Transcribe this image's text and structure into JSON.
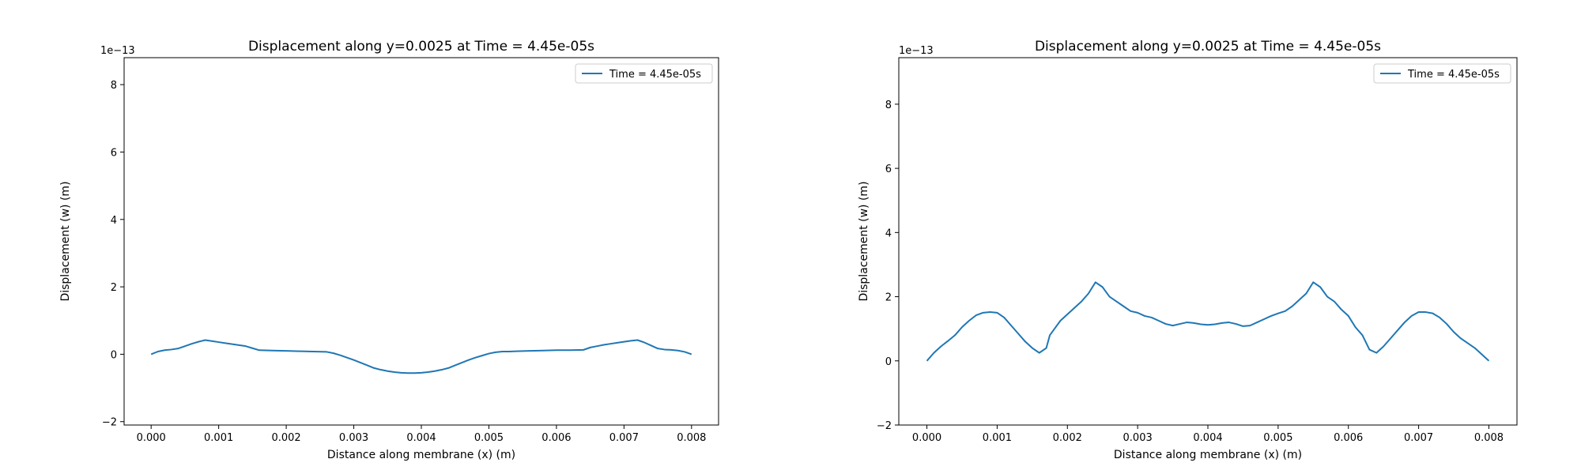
{
  "chart_data": [
    {
      "type": "line",
      "title": "Displacement along y=0.0025 at Time = 4.45e-05s",
      "xlabel": "Distance along membrane (x) (m)",
      "ylabel": "Displacement (w) (m)",
      "y_offset_label": "1e−13",
      "xlim": [
        -0.0004,
        0.0084
      ],
      "ylim": [
        -2.1,
        8.8
      ],
      "xticks": [
        0.0,
        0.001,
        0.002,
        0.003,
        0.004,
        0.005,
        0.006,
        0.007,
        0.008
      ],
      "xtick_labels": [
        "0.000",
        "0.001",
        "0.002",
        "0.003",
        "0.004",
        "0.005",
        "0.006",
        "0.007",
        "0.008"
      ],
      "yticks": [
        -2,
        0,
        2,
        4,
        6,
        8
      ],
      "ytick_labels": [
        "−2",
        "0",
        "2",
        "4",
        "6",
        "8"
      ],
      "legend": "top-right",
      "color": "#1f77b4",
      "series": [
        {
          "name": "Time = 4.45e-05s",
          "x": [
            0.0,
            0.0001,
            0.0002,
            0.0003,
            0.0004,
            0.0005,
            0.0006,
            0.0007,
            0.0008,
            0.0009,
            0.001,
            0.0011,
            0.0012,
            0.0013,
            0.0014,
            0.0015,
            0.0016,
            0.0018,
            0.002,
            0.0022,
            0.0024,
            0.0026,
            0.0027,
            0.0028,
            0.0029,
            0.003,
            0.0031,
            0.0032,
            0.0033,
            0.0034,
            0.0035,
            0.0036,
            0.0037,
            0.0038,
            0.0039,
            0.004,
            0.0041,
            0.0042,
            0.0043,
            0.0044,
            0.0045,
            0.0046,
            0.0047,
            0.0048,
            0.0049,
            0.005,
            0.0051,
            0.0052,
            0.0053,
            0.0054,
            0.0056,
            0.0058,
            0.006,
            0.0062,
            0.0064,
            0.0065,
            0.0066,
            0.0067,
            0.0068,
            0.0069,
            0.007,
            0.0071,
            0.0072,
            0.0073,
            0.0074,
            0.0075,
            0.0076,
            0.0077,
            0.0078,
            0.0079,
            0.008
          ],
          "y": [
            0.0,
            0.08,
            0.12,
            0.14,
            0.17,
            0.24,
            0.31,
            0.37,
            0.42,
            0.39,
            0.36,
            0.33,
            0.3,
            0.27,
            0.24,
            0.18,
            0.12,
            0.11,
            0.1,
            0.09,
            0.08,
            0.07,
            0.03,
            -0.03,
            -0.1,
            -0.17,
            -0.25,
            -0.33,
            -0.41,
            -0.46,
            -0.5,
            -0.53,
            -0.55,
            -0.56,
            -0.56,
            -0.55,
            -0.53,
            -0.5,
            -0.46,
            -0.41,
            -0.33,
            -0.25,
            -0.17,
            -0.1,
            -0.04,
            0.02,
            0.06,
            0.08,
            0.08,
            0.09,
            0.1,
            0.11,
            0.12,
            0.12,
            0.13,
            0.2,
            0.24,
            0.28,
            0.31,
            0.34,
            0.37,
            0.4,
            0.42,
            0.35,
            0.26,
            0.17,
            0.14,
            0.13,
            0.11,
            0.07,
            0.0
          ]
        }
      ]
    },
    {
      "type": "line",
      "title": "Displacement along y=0.0025 at Time = 4.45e-05s",
      "xlabel": "Distance along membrane (x) (m)",
      "ylabel": "Displacement (w) (m)",
      "y_offset_label": "1e−13",
      "xlim": [
        -0.0004,
        0.0084
      ],
      "ylim": [
        -2.0,
        9.45
      ],
      "xticks": [
        0.0,
        0.001,
        0.002,
        0.003,
        0.004,
        0.005,
        0.006,
        0.007,
        0.008
      ],
      "xtick_labels": [
        "0.000",
        "0.001",
        "0.002",
        "0.003",
        "0.004",
        "0.005",
        "0.006",
        "0.007",
        "0.008"
      ],
      "yticks": [
        -2,
        0,
        2,
        4,
        6,
        8
      ],
      "ytick_labels": [
        "−2",
        "0",
        "2",
        "4",
        "6",
        "8"
      ],
      "legend": "top-right",
      "color": "#1f77b4",
      "series": [
        {
          "name": "Time = 4.45e-05s",
          "x": [
            0.0,
            0.0001,
            0.0002,
            0.0003,
            0.0004,
            0.0005,
            0.0006,
            0.0007,
            0.0008,
            0.0009,
            0.001,
            0.0011,
            0.0012,
            0.0013,
            0.0014,
            0.0015,
            0.0016,
            0.0017,
            0.00175,
            0.0018,
            0.0019,
            0.002,
            0.0021,
            0.0022,
            0.0023,
            0.0024,
            0.0025,
            0.0026,
            0.0027,
            0.0028,
            0.0029,
            0.003,
            0.0031,
            0.0032,
            0.0033,
            0.0034,
            0.0035,
            0.0036,
            0.0037,
            0.0038,
            0.0039,
            0.004,
            0.0041,
            0.0042,
            0.0043,
            0.0044,
            0.0045,
            0.0046,
            0.0047,
            0.0048,
            0.0049,
            0.005,
            0.0051,
            0.0052,
            0.0053,
            0.0054,
            0.0055,
            0.0056,
            0.0057,
            0.0058,
            0.0059,
            0.006,
            0.0061,
            0.0062,
            0.0063,
            0.0064,
            0.0065,
            0.0066,
            0.0067,
            0.0068,
            0.0069,
            0.007,
            0.0071,
            0.0072,
            0.0073,
            0.0074,
            0.0075,
            0.0076,
            0.0077,
            0.0078,
            0.0079,
            0.008
          ],
          "y": [
            0.0,
            0.25,
            0.45,
            0.62,
            0.8,
            1.05,
            1.25,
            1.42,
            1.5,
            1.52,
            1.5,
            1.35,
            1.1,
            0.85,
            0.6,
            0.4,
            0.25,
            0.4,
            0.8,
            0.95,
            1.25,
            1.45,
            1.65,
            1.85,
            2.1,
            2.45,
            2.3,
            2.0,
            1.85,
            1.7,
            1.55,
            1.5,
            1.4,
            1.35,
            1.25,
            1.15,
            1.1,
            1.15,
            1.2,
            1.18,
            1.14,
            1.12,
            1.14,
            1.18,
            1.2,
            1.15,
            1.08,
            1.1,
            1.2,
            1.3,
            1.4,
            1.48,
            1.55,
            1.7,
            1.9,
            2.1,
            2.45,
            2.3,
            2.0,
            1.85,
            1.6,
            1.4,
            1.05,
            0.8,
            0.35,
            0.25,
            0.45,
            0.7,
            0.95,
            1.2,
            1.4,
            1.52,
            1.52,
            1.48,
            1.35,
            1.15,
            0.9,
            0.7,
            0.55,
            0.4,
            0.2,
            0.0
          ]
        }
      ]
    }
  ]
}
